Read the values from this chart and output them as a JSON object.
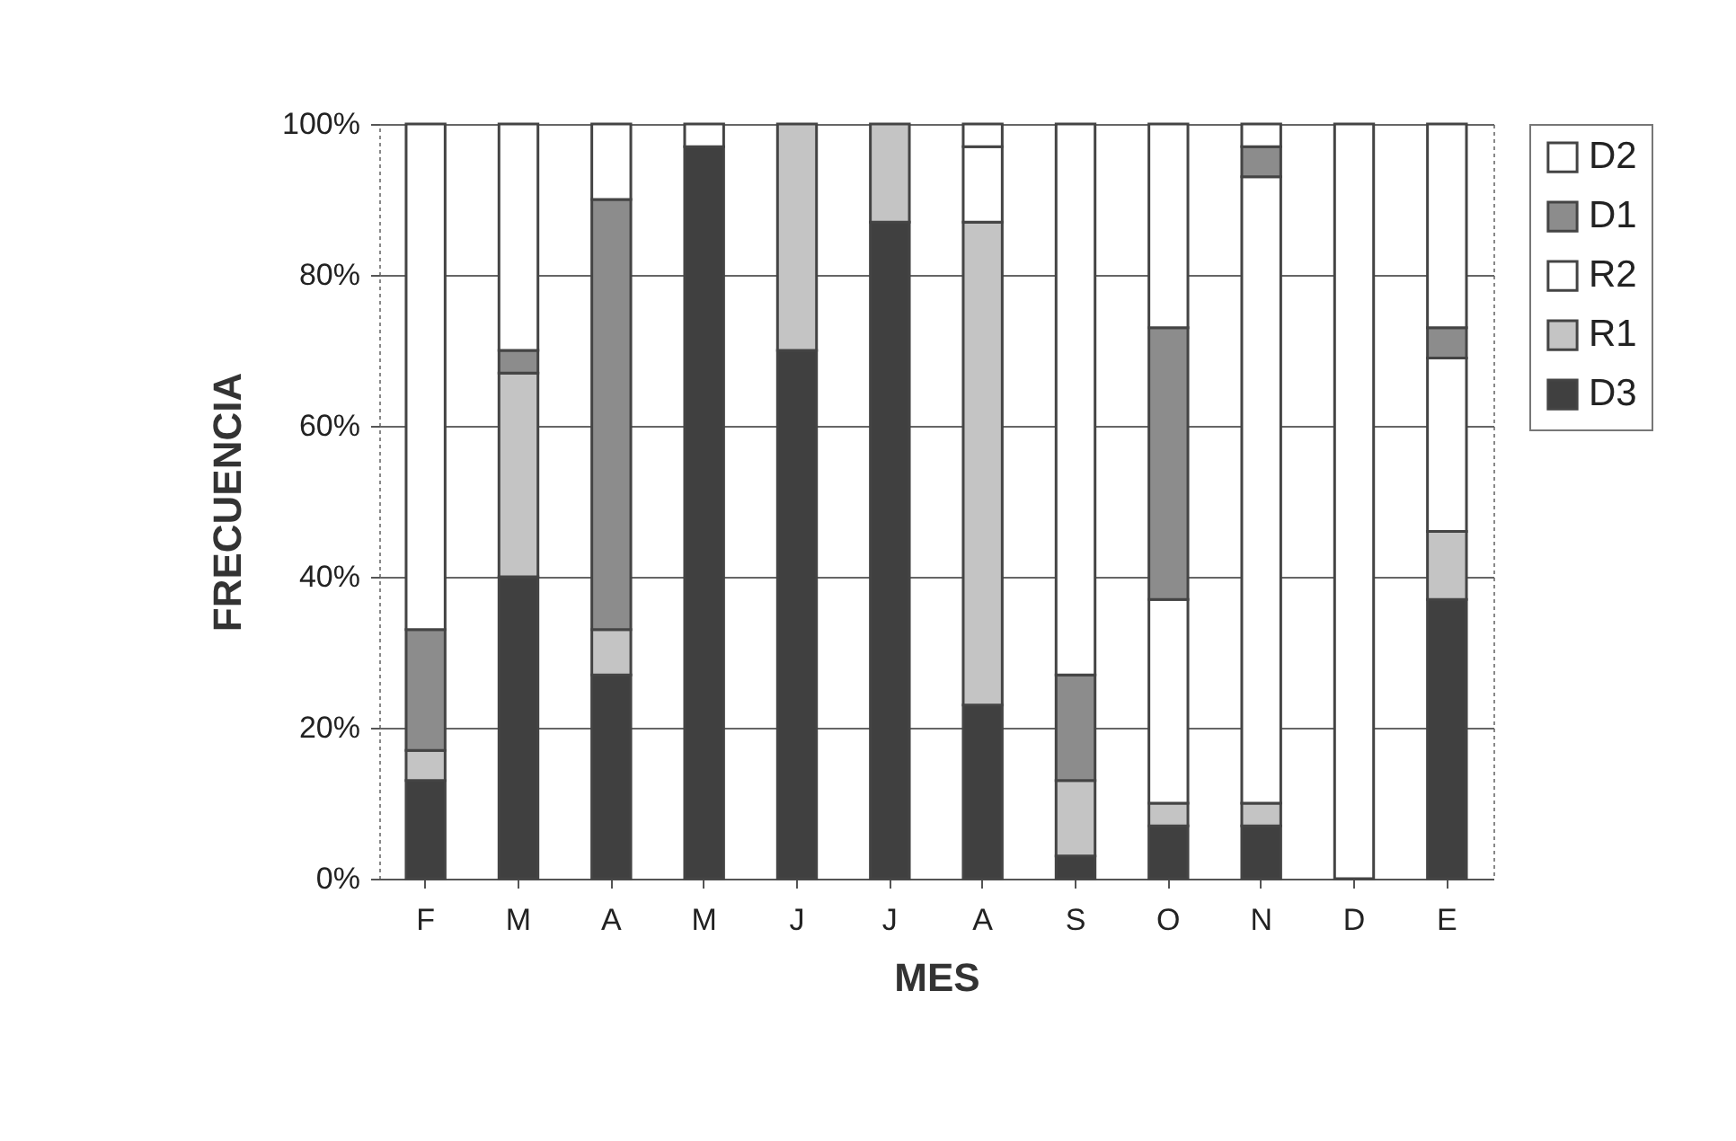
{
  "chart_data": {
    "type": "bar",
    "stacked": true,
    "xlabel": "MES",
    "ylabel": "FRECUENCIA",
    "categories": [
      "F",
      "M",
      "A",
      "M",
      "J",
      "J",
      "A",
      "S",
      "O",
      "N",
      "D",
      "E"
    ],
    "series": [
      {
        "name": "D3",
        "color": "#404040",
        "values": [
          13,
          40,
          27,
          97,
          70,
          87,
          23,
          3,
          7,
          7,
          0,
          37
        ]
      },
      {
        "name": "R1",
        "color": "#c4c4c4",
        "values": [
          4,
          27,
          6,
          0,
          30,
          13,
          64,
          10,
          3,
          3,
          0,
          9
        ]
      },
      {
        "name": "R2",
        "color": "#ffffff",
        "values": [
          0,
          0,
          0,
          0,
          0,
          0,
          10,
          0,
          27,
          83,
          0,
          23
        ]
      },
      {
        "name": "D1",
        "color": "#8c8c8c",
        "values": [
          16,
          3,
          57,
          0,
          0,
          0,
          0,
          14,
          36,
          4,
          0,
          4
        ]
      },
      {
        "name": "D2",
        "color": "#ffffff",
        "values": [
          67,
          30,
          10,
          3,
          0,
          0,
          3,
          73,
          27,
          3,
          100,
          27
        ]
      }
    ],
    "ylim": [
      0,
      100
    ],
    "yticks": [
      {
        "value": 0,
        "label": "0%"
      },
      {
        "value": 20,
        "label": "20%"
      },
      {
        "value": 40,
        "label": "40%"
      },
      {
        "value": 60,
        "label": "60%"
      },
      {
        "value": 80,
        "label": "80%"
      },
      {
        "value": 100,
        "label": "100%"
      }
    ],
    "grid": "y",
    "legend": "right"
  }
}
